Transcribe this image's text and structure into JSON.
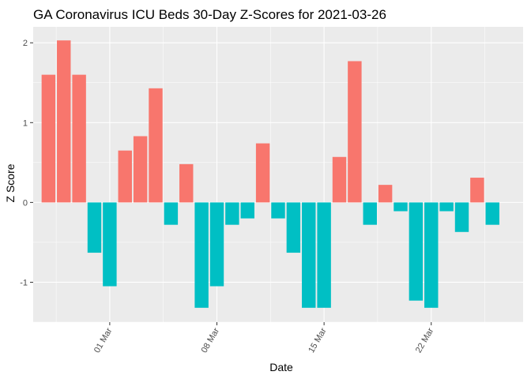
{
  "chart_data": {
    "type": "bar",
    "title": "GA Coronavirus ICU Beds 30-Day Z-Scores for 2021-03-26",
    "xlabel": "Date",
    "ylabel": "Z Score",
    "ylim": [
      -1.5,
      2.2
    ],
    "y_ticks": [
      -1,
      0,
      1,
      2
    ],
    "x_tick_labels": [
      "01 Mar",
      "08 Mar",
      "15 Mar",
      "22 Mar"
    ],
    "x_tick_dates": [
      "2021-03-01",
      "2021-03-08",
      "2021-03-15",
      "2021-03-22"
    ],
    "x_range": [
      "2021-02-24",
      "2021-03-28"
    ],
    "grid": true,
    "legend": "none",
    "colors": {
      "positive": "#F8766D",
      "negative": "#00BFC4",
      "panel": "#EBEBEB",
      "grid": "#FFFFFF"
    },
    "dates": [
      "2021-02-25",
      "2021-02-26",
      "2021-02-27",
      "2021-02-28",
      "2021-03-01",
      "2021-03-02",
      "2021-03-03",
      "2021-03-04",
      "2021-03-05",
      "2021-03-06",
      "2021-03-07",
      "2021-03-08",
      "2021-03-09",
      "2021-03-10",
      "2021-03-11",
      "2021-03-12",
      "2021-03-13",
      "2021-03-14",
      "2021-03-15",
      "2021-03-16",
      "2021-03-17",
      "2021-03-18",
      "2021-03-19",
      "2021-03-20",
      "2021-03-21",
      "2021-03-22",
      "2021-03-23",
      "2021-03-24",
      "2021-03-25",
      "2021-03-26"
    ],
    "values": [
      1.6,
      2.03,
      1.6,
      -0.63,
      -1.05,
      0.65,
      0.83,
      1.43,
      -0.28,
      0.48,
      -1.32,
      -1.05,
      -0.28,
      -0.2,
      0.74,
      -0.2,
      -0.63,
      -1.32,
      -1.32,
      0.57,
      1.77,
      -0.28,
      0.22,
      -0.11,
      -1.23,
      -1.32,
      -0.11,
      -0.37,
      0.31,
      -0.28
    ]
  }
}
